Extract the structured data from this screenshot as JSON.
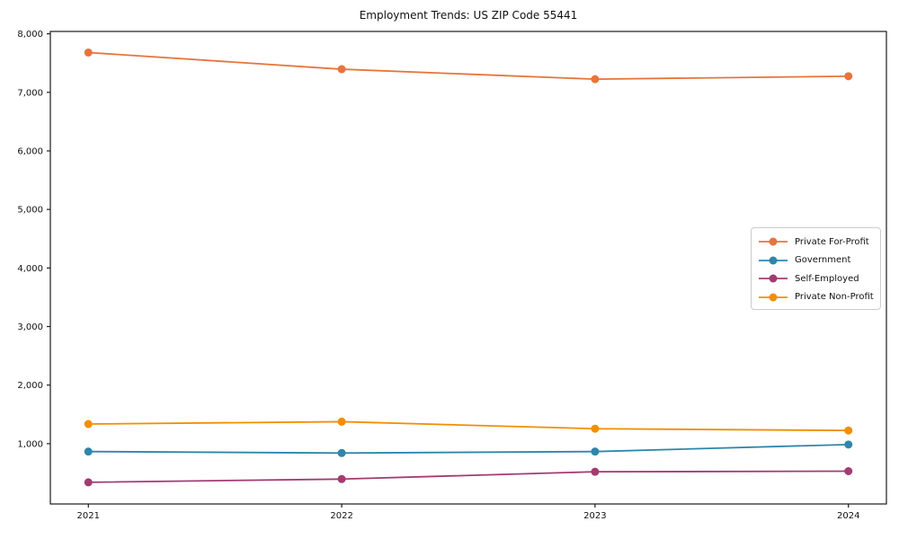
{
  "figure": {
    "background_color": "#ffffff",
    "spine_color": "#1a1a1a",
    "text_color": "#111111",
    "legend_border_color": "#cccccc"
  },
  "chart_data": {
    "type": "line",
    "title": "Employment Trends: US ZIP Code 55441",
    "xlabel": "",
    "ylabel": "",
    "x": [
      2021,
      2022,
      2023,
      2024
    ],
    "x_tick_labels": [
      "2021",
      "2022",
      "2023",
      "2024"
    ],
    "y_ticks": [
      1000,
      2000,
      3000,
      4000,
      5000,
      6000,
      7000,
      8000
    ],
    "y_tick_labels": [
      "1,000",
      "2,000",
      "3,000",
      "4,000",
      "5,000",
      "6,000",
      "7,000",
      "8,000"
    ],
    "xlim": [
      2020.85,
      2024.15
    ],
    "ylim": [
      -30,
      8040
    ],
    "grid": false,
    "legend_position": "center-right",
    "marker": "circle",
    "series": [
      {
        "name": "Private For-Profit",
        "color": "#E8743B",
        "values": [
          7680,
          7395,
          7225,
          7275
        ]
      },
      {
        "name": "Government",
        "color": "#2E86AB",
        "values": [
          865,
          840,
          865,
          985
        ]
      },
      {
        "name": "Self-Employed",
        "color": "#A23B72",
        "values": [
          340,
          395,
          520,
          530
        ]
      },
      {
        "name": "Private Non-Profit",
        "color": "#F18F01",
        "values": [
          1335,
          1375,
          1255,
          1225
        ]
      }
    ]
  }
}
